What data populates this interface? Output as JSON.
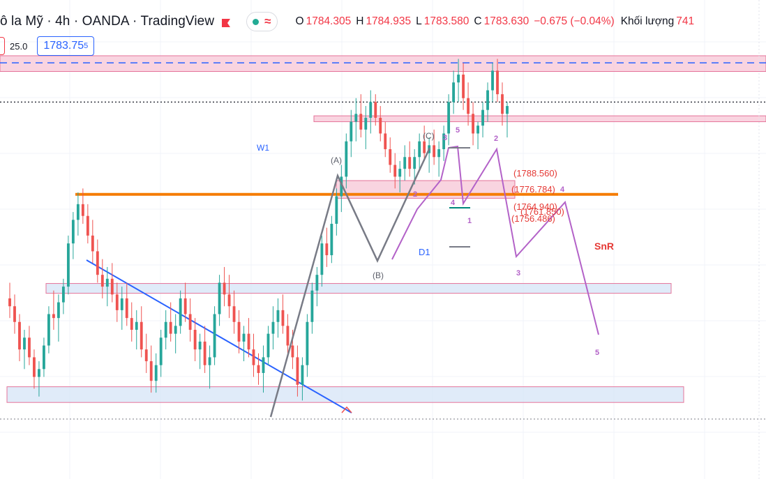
{
  "header": {
    "title": "ô la Mỹ · 4h · OANDA · TradingView",
    "open_label": "O",
    "open": "1784.305",
    "high_label": "H",
    "high": "1784.935",
    "low_label": "L",
    "low": "1783.580",
    "close_label": "C",
    "close": "1783.630",
    "change": "−0.675 (−0.04%)",
    "volume_label": "Khối lượng",
    "volume": "741",
    "accent_down": "#f23645",
    "accent_up": "#22ab94"
  },
  "toolbar": {
    "spread": "25.0",
    "price_main": "1783.75",
    "price_sup": "5"
  },
  "chart_data": {
    "type": "candlestick",
    "timeframe": "4h",
    "ylim": [
      1698,
      1820
    ],
    "levels": [
      {
        "name": "W1",
        "price": 1804.0,
        "zone": [
          1801.8,
          1805.8
        ],
        "color": "#f7c5d6"
      },
      {
        "name": "SnR",
        "price": 1770.5,
        "color": "#f57c00"
      },
      {
        "name": "D1",
        "price": 1772.0,
        "zone": [
          1769.5,
          1774.0
        ],
        "color": "#f7c5d6"
      },
      {
        "name": "",
        "zone": [
          1745.3,
          1747.8
        ],
        "color": "#d6e4f7"
      },
      {
        "name": "",
        "zone": [
          1717.5,
          1721.5
        ],
        "color": "#d6e4f7"
      },
      {
        "name": "",
        "zone": [
          1789.0,
          1790.5
        ],
        "color": "#f7c5d6"
      }
    ],
    "current_price": 1794.0,
    "targets": [
      "(1788.560)",
      "(1776.784)",
      "(1764.940)",
      "(1761.850)",
      "(1756.486)"
    ],
    "wave_labels": {
      "abc": [
        "(A)",
        "(B)",
        "(C)"
      ],
      "impulse": [
        "1",
        "2",
        "3",
        "4",
        "5"
      ],
      "projection": [
        "2",
        "3",
        "4",
        "5"
      ],
      "zone_tags": [
        "W1",
        "D1",
        "SnR"
      ]
    },
    "candles": [
      [
        1744,
        1748,
        1739,
        1742
      ],
      [
        1742,
        1745,
        1735,
        1738
      ],
      [
        1738,
        1740,
        1728,
        1731
      ],
      [
        1731,
        1736,
        1726,
        1734
      ],
      [
        1734,
        1737,
        1727,
        1729
      ],
      [
        1729,
        1731,
        1721,
        1724
      ],
      [
        1724,
        1728,
        1719,
        1726
      ],
      [
        1726,
        1734,
        1724,
        1732
      ],
      [
        1732,
        1742,
        1730,
        1740
      ],
      [
        1740,
        1746,
        1736,
        1739
      ],
      [
        1739,
        1745,
        1733,
        1743
      ],
      [
        1743,
        1749,
        1740,
        1747
      ],
      [
        1747,
        1760,
        1745,
        1758
      ],
      [
        1758,
        1766,
        1754,
        1764
      ],
      [
        1764,
        1771,
        1760,
        1768
      ],
      [
        1768,
        1772,
        1763,
        1765
      ],
      [
        1765,
        1768,
        1758,
        1760
      ],
      [
        1760,
        1764,
        1753,
        1756
      ],
      [
        1756,
        1759,
        1748,
        1750
      ],
      [
        1750,
        1754,
        1744,
        1747
      ],
      [
        1747,
        1752,
        1742,
        1749
      ],
      [
        1749,
        1753,
        1743,
        1745
      ],
      [
        1745,
        1748,
        1738,
        1741
      ],
      [
        1741,
        1747,
        1736,
        1744
      ],
      [
        1744,
        1748,
        1737,
        1739
      ],
      [
        1739,
        1743,
        1733,
        1736
      ],
      [
        1736,
        1741,
        1731,
        1738
      ],
      [
        1738,
        1742,
        1729,
        1731
      ],
      [
        1731,
        1735,
        1725,
        1728
      ],
      [
        1728,
        1732,
        1720,
        1723
      ],
      [
        1723,
        1730,
        1720,
        1727
      ],
      [
        1727,
        1736,
        1724,
        1734
      ],
      [
        1734,
        1741,
        1731,
        1738
      ],
      [
        1738,
        1743,
        1733,
        1735
      ],
      [
        1735,
        1740,
        1730,
        1737
      ],
      [
        1737,
        1746,
        1735,
        1744
      ],
      [
        1744,
        1748,
        1738,
        1740
      ],
      [
        1740,
        1744,
        1733,
        1736
      ],
      [
        1736,
        1739,
        1728,
        1731
      ],
      [
        1731,
        1735,
        1726,
        1733
      ],
      [
        1733,
        1737,
        1725,
        1727
      ],
      [
        1727,
        1732,
        1721,
        1729
      ],
      [
        1729,
        1742,
        1727,
        1740
      ],
      [
        1740,
        1750,
        1737,
        1748
      ],
      [
        1748,
        1752,
        1742,
        1745
      ],
      [
        1745,
        1750,
        1739,
        1742
      ],
      [
        1742,
        1746,
        1735,
        1738
      ],
      [
        1738,
        1741,
        1730,
        1733
      ],
      [
        1733,
        1737,
        1728,
        1735
      ],
      [
        1735,
        1739,
        1729,
        1731
      ],
      [
        1731,
        1735,
        1724,
        1727
      ],
      [
        1727,
        1730,
        1722,
        1725
      ],
      [
        1725,
        1732,
        1720,
        1729
      ],
      [
        1729,
        1737,
        1727,
        1735
      ],
      [
        1735,
        1742,
        1731,
        1738
      ],
      [
        1738,
        1744,
        1734,
        1741
      ],
      [
        1741,
        1745,
        1735,
        1737
      ],
      [
        1737,
        1740,
        1730,
        1732
      ],
      [
        1732,
        1736,
        1726,
        1729
      ],
      [
        1729,
        1732,
        1719,
        1722
      ],
      [
        1722,
        1729,
        1718,
        1727
      ],
      [
        1727,
        1740,
        1724,
        1738
      ],
      [
        1738,
        1748,
        1735,
        1746
      ],
      [
        1746,
        1752,
        1742,
        1750
      ],
      [
        1750,
        1760,
        1747,
        1758
      ],
      [
        1758,
        1762,
        1752,
        1755
      ],
      [
        1755,
        1765,
        1753,
        1763
      ],
      [
        1763,
        1772,
        1760,
        1770
      ],
      [
        1770,
        1778,
        1766,
        1775
      ],
      [
        1775,
        1786,
        1772,
        1784
      ],
      [
        1784,
        1792,
        1780,
        1789
      ],
      [
        1789,
        1795,
        1784,
        1791
      ],
      [
        1791,
        1796,
        1785,
        1787
      ],
      [
        1787,
        1793,
        1782,
        1790
      ],
      [
        1790,
        1797,
        1786,
        1794
      ],
      [
        1794,
        1796,
        1788,
        1790
      ],
      [
        1790,
        1793,
        1784,
        1786
      ],
      [
        1786,
        1789,
        1780,
        1782
      ],
      [
        1782,
        1785,
        1776,
        1778
      ],
      [
        1778,
        1781,
        1772,
        1775
      ],
      [
        1775,
        1779,
        1771,
        1777
      ],
      [
        1777,
        1783,
        1774,
        1780
      ],
      [
        1780,
        1784,
        1775,
        1777
      ],
      [
        1777,
        1782,
        1773,
        1780
      ],
      [
        1780,
        1786,
        1777,
        1784
      ],
      [
        1784,
        1788,
        1779,
        1781
      ],
      [
        1781,
        1785,
        1776,
        1783
      ],
      [
        1783,
        1787,
        1778,
        1780
      ],
      [
        1780,
        1784,
        1775,
        1782
      ],
      [
        1782,
        1788,
        1779,
        1786
      ],
      [
        1786,
        1796,
        1783,
        1794
      ],
      [
        1794,
        1802,
        1791,
        1799
      ],
      [
        1799,
        1805,
        1794,
        1801
      ],
      [
        1801,
        1804,
        1792,
        1795
      ],
      [
        1795,
        1799,
        1788,
        1791
      ],
      [
        1791,
        1794,
        1783,
        1786
      ],
      [
        1786,
        1789,
        1782,
        1788
      ],
      [
        1788,
        1794,
        1785,
        1792
      ],
      [
        1792,
        1799,
        1789,
        1797
      ],
      [
        1797,
        1804,
        1794,
        1802
      ],
      [
        1802,
        1805,
        1794,
        1796
      ],
      [
        1796,
        1799,
        1788,
        1791
      ],
      [
        1791,
        1794,
        1785,
        1793
      ]
    ]
  }
}
